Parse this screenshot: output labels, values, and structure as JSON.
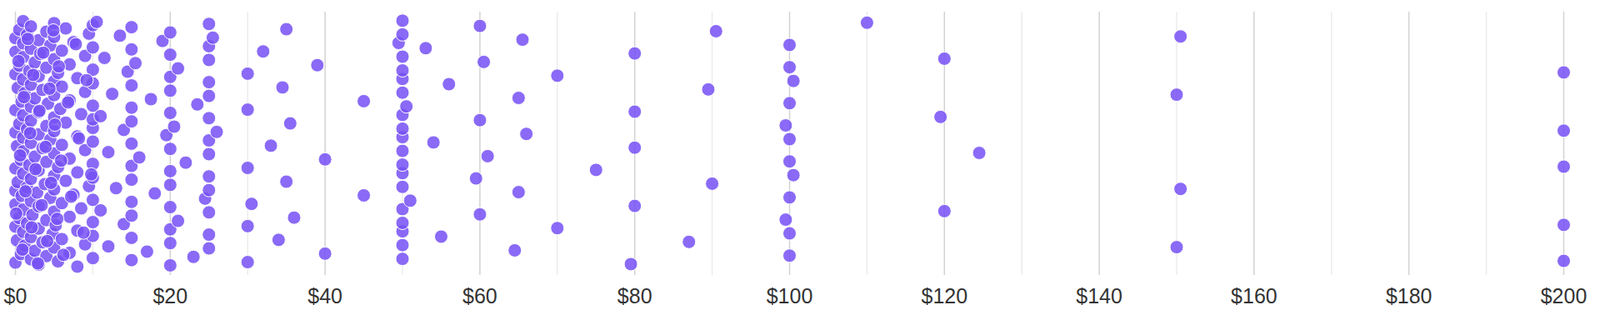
{
  "chart_data": {
    "type": "strip",
    "color": "#7650f4",
    "grid": true,
    "tick_labels": "x",
    "xlim": [
      0,
      200
    ],
    "xticks": [
      {
        "value": 0,
        "label": "$0"
      },
      {
        "value": 20,
        "label": "$20"
      },
      {
        "value": 40,
        "label": "$40"
      },
      {
        "value": 60,
        "label": "$60"
      },
      {
        "value": 80,
        "label": "$80"
      },
      {
        "value": 100,
        "label": "$100"
      },
      {
        "value": 120,
        "label": "$120"
      },
      {
        "value": 140,
        "label": "$140"
      },
      {
        "value": 160,
        "label": "$160"
      },
      {
        "value": 180,
        "label": "$180"
      },
      {
        "value": 200,
        "label": "$200"
      }
    ],
    "x": [
      0,
      0,
      0,
      0,
      0,
      0,
      0,
      0,
      0,
      0,
      0.2,
      0.2,
      0.3,
      0.3,
      0.5,
      0.5,
      0.5,
      0.5,
      0.7,
      0.7,
      0.8,
      0.8,
      1,
      1,
      1,
      1,
      1,
      1,
      1,
      1,
      1,
      1,
      1.2,
      1.2,
      1.5,
      1.5,
      1.5,
      1.5,
      1.8,
      1.8,
      2,
      2,
      2,
      2,
      2,
      2,
      2,
      2,
      2,
      2,
      2.2,
      2.5,
      2.5,
      2.5,
      2.5,
      2.8,
      3,
      3,
      3,
      3,
      3,
      3,
      3,
      3,
      3.2,
      3.5,
      3.5,
      3.5,
      3.8,
      4,
      4,
      4,
      4,
      4,
      4,
      4.2,
      4.5,
      4.5,
      4.5,
      4.8,
      5,
      5,
      5,
      5,
      5,
      5,
      5,
      5,
      5,
      5,
      5,
      5,
      5.2,
      5.5,
      5.5,
      5.5,
      5.8,
      6,
      6,
      6,
      6,
      6,
      6.5,
      6.5,
      6.5,
      7,
      7,
      7,
      7,
      7,
      7.5,
      7.5,
      8,
      8,
      8,
      8,
      8,
      8.5,
      8.5,
      9,
      9,
      9,
      9,
      9.5,
      9.5,
      10,
      10,
      10,
      10,
      10,
      10,
      10,
      10,
      10,
      10,
      10,
      10,
      10,
      10,
      0.1,
      0.4,
      0.6,
      0.9,
      1.1,
      1.3,
      1.6,
      1.9,
      2.1,
      2.3,
      2.6,
      2.9,
      3.1,
      3.4,
      3.6,
      3.9,
      4.1,
      4.4,
      4.6,
      4.9,
      5.1,
      5.4,
      5.6,
      5.9,
      6.2,
      6.8,
      7.2,
      7.8,
      8.2,
      8.8,
      9.2,
      9.8,
      10.5,
      11,
      11,
      11.5,
      12,
      12,
      12.5,
      13,
      13.5,
      14,
      14,
      14.5,
      15,
      15,
      15,
      15,
      15,
      15,
      15,
      15,
      15,
      15,
      15,
      15,
      15.5,
      16,
      17,
      17.5,
      18,
      19,
      19.5,
      20,
      20,
      20,
      20,
      20,
      20,
      20,
      20,
      20,
      20,
      20,
      20,
      20.5,
      21,
      21,
      22,
      23,
      23.5,
      24.5,
      25,
      25,
      25,
      25,
      25,
      25,
      25,
      25,
      25,
      25,
      25,
      25,
      25,
      25.5,
      26,
      30,
      30,
      30,
      30,
      30,
      30.5,
      32,
      33,
      34,
      34.5,
      35,
      35,
      35.5,
      36,
      39,
      40,
      40,
      45,
      45,
      49.5,
      50,
      50,
      50,
      50,
      50,
      50,
      50,
      50,
      50,
      50,
      50,
      50,
      50,
      50,
      50,
      50,
      50,
      50,
      50.5,
      51,
      53,
      54,
      55,
      56,
      59.5,
      60,
      60,
      60,
      60.5,
      61,
      64.5,
      65,
      65,
      65.5,
      66,
      70,
      70,
      75,
      79.5,
      80,
      80,
      80,
      80,
      87,
      89.5,
      90,
      90.5,
      99.5,
      99.5,
      100,
      100,
      100,
      100,
      100,
      100,
      100,
      100,
      100.5,
      100.5,
      110,
      119.5,
      120,
      120,
      124.5,
      150,
      150,
      150.5,
      150.5,
      200,
      200,
      200,
      200,
      200
    ]
  }
}
